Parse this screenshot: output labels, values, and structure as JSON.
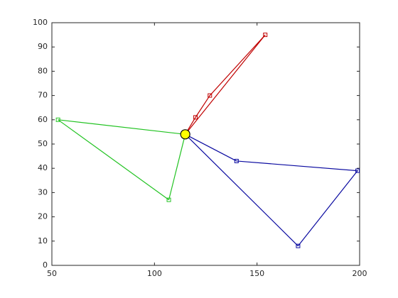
{
  "chart_data": {
    "type": "line",
    "xlim": [
      50,
      200
    ],
    "xticks": [
      50,
      100,
      150,
      200
    ],
    "ylim": [
      0,
      100
    ],
    "yticks": [
      0,
      10,
      20,
      30,
      40,
      50,
      60,
      70,
      80,
      90,
      100
    ],
    "hub": {
      "x": 115,
      "y": 54,
      "color": "#ffff00"
    },
    "series": [
      {
        "color": "#c00000",
        "x": [
          154,
          127,
          120
        ],
        "y": [
          95,
          70,
          61
        ]
      },
      {
        "color": "#22c322",
        "x": [
          53,
          107
        ],
        "y": [
          60,
          27
        ]
      },
      {
        "color": "#0a0aa0",
        "x": [
          140,
          199,
          170
        ],
        "y": [
          43,
          39,
          8
        ]
      }
    ]
  }
}
